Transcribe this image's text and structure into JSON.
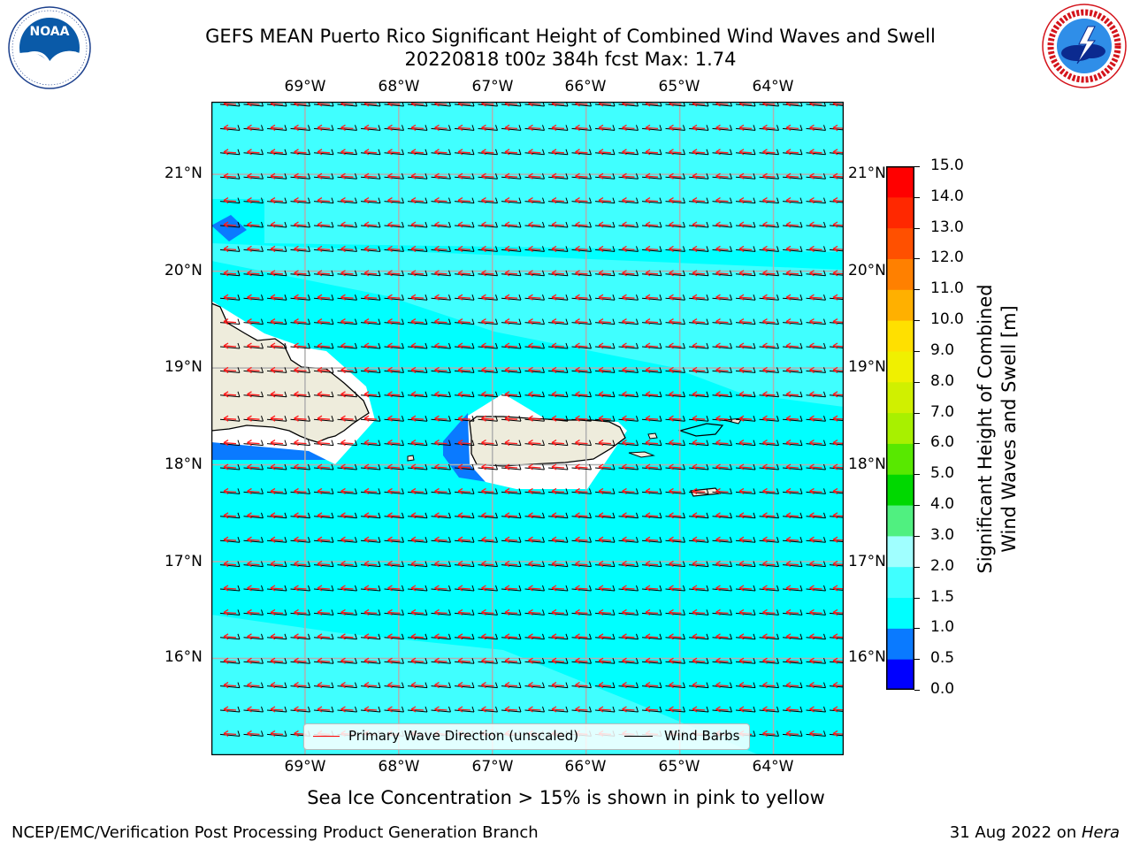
{
  "header": {
    "title_line1": "GEFS MEAN Puerto Rico Significant Height of Combined Wind Waves and Swell",
    "title_line2": "20220818 t00z 384h fcst   Max: 1.74"
  },
  "logos": {
    "noaa": {
      "text": "NOAA",
      "ring_text": "NATIONAL OCEANIC AND ATMOSPHERIC ADMINISTRATION · U.S. DEPARTMENT OF COMMERCE",
      "color": "#0a5aa8"
    },
    "nws": {
      "ring_text": "NATIONAL WEATHER SERVICE",
      "color": "#d4141c"
    }
  },
  "map": {
    "lon_ticks": [
      "69°W",
      "68°W",
      "67°W",
      "66°W",
      "65°W",
      "64°W"
    ],
    "lat_ticks": [
      "21°N",
      "20°N",
      "19°N",
      "18°N",
      "17°N",
      "16°N"
    ],
    "extent": {
      "lon": [
        -70.0,
        -63.25
      ],
      "lat": [
        15.0,
        21.75
      ]
    },
    "ocean_color": "#00ffff",
    "land_color": "#eeecdc"
  },
  "legend": {
    "primary_wave_direction": "Primary Wave Direction (unscaled)",
    "wind_barbs": "Wind Barbs"
  },
  "colorbar": {
    "label_line1": "Significant Height of Combined",
    "label_line2": "Wind Waves and Swell [m]",
    "levels": [
      "0.0",
      "0.5",
      "1.0",
      "1.5",
      "2.0",
      "3.0",
      "4.0",
      "5.0",
      "6.0",
      "7.0",
      "8.0",
      "9.0",
      "10.0",
      "11.0",
      "12.0",
      "13.0",
      "14.0",
      "15.0"
    ],
    "colors": [
      "#0000ff",
      "#0a7aff",
      "#00ffff",
      "#40ffff",
      "#a0ffff",
      "#50f080",
      "#00d800",
      "#58e800",
      "#a8f000",
      "#d0f000",
      "#f0f000",
      "#ffe000",
      "#ffb000",
      "#ff8000",
      "#ff5000",
      "#ff2800",
      "#ff0000"
    ]
  },
  "caption": "Sea Ice Concentration > 15% is shown in pink to yellow",
  "footer": {
    "left": "NCEP/EMC/Verification Post Processing Product Generation Branch",
    "date": "31 Aug 2022 on ",
    "machine": "Hera"
  }
}
